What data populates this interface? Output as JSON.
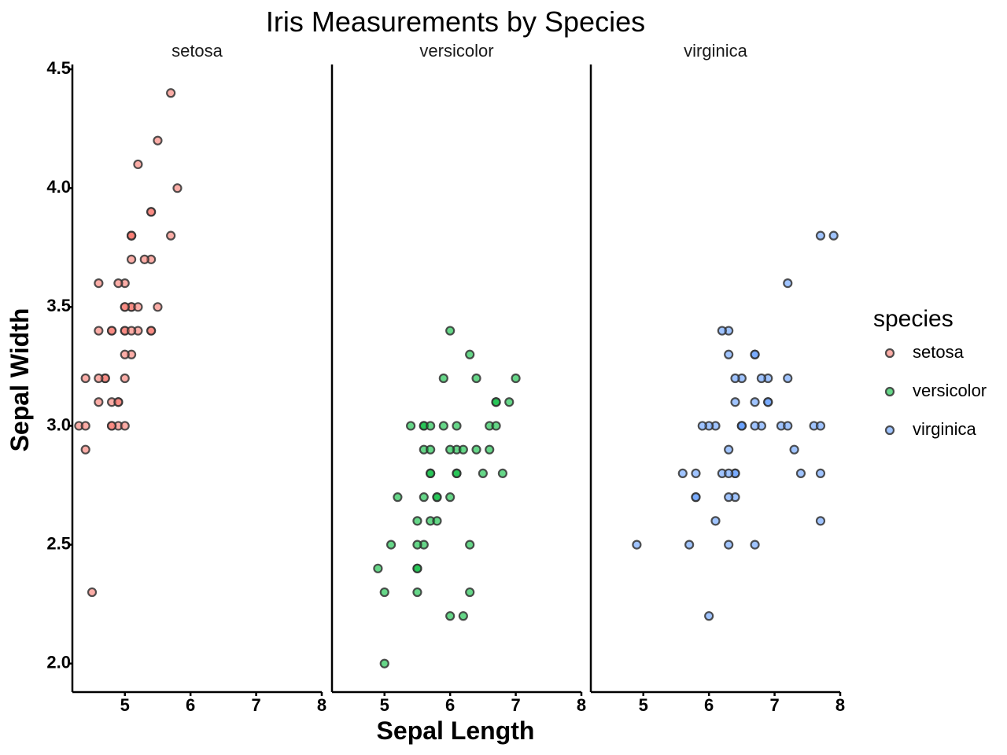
{
  "chart_data": {
    "type": "scatter",
    "title": "Iris Measurements by Species",
    "xlabel": "Sepal Length",
    "ylabel": "Sepal Width",
    "xlim": [
      4.2,
      8.0
    ],
    "ylim": [
      1.88,
      4.52
    ],
    "xticks": [
      "5",
      "6",
      "7",
      "8"
    ],
    "yticks": [
      "2.0",
      "2.5",
      "3.0",
      "3.5",
      "4.0",
      "4.5"
    ],
    "grid": false,
    "legend": {
      "title": "species",
      "placement": "right",
      "entries": [
        "setosa",
        "versicolor",
        "virginica"
      ]
    },
    "facets": [
      {
        "name": "setosa",
        "color": "#F8766D",
        "points": [
          [
            5.1,
            3.5
          ],
          [
            4.9,
            3.0
          ],
          [
            4.7,
            3.2
          ],
          [
            4.6,
            3.1
          ],
          [
            5.0,
            3.6
          ],
          [
            5.4,
            3.9
          ],
          [
            4.6,
            3.4
          ],
          [
            5.0,
            3.4
          ],
          [
            4.4,
            2.9
          ],
          [
            4.9,
            3.1
          ],
          [
            5.4,
            3.7
          ],
          [
            4.8,
            3.4
          ],
          [
            4.8,
            3.0
          ],
          [
            4.3,
            3.0
          ],
          [
            5.8,
            4.0
          ],
          [
            5.7,
            4.4
          ],
          [
            5.4,
            3.9
          ],
          [
            5.1,
            3.5
          ],
          [
            5.7,
            3.8
          ],
          [
            5.1,
            3.8
          ],
          [
            5.4,
            3.4
          ],
          [
            5.1,
            3.7
          ],
          [
            4.6,
            3.6
          ],
          [
            5.1,
            3.3
          ],
          [
            4.8,
            3.4
          ],
          [
            5.0,
            3.0
          ],
          [
            5.0,
            3.4
          ],
          [
            5.2,
            3.5
          ],
          [
            5.2,
            3.4
          ],
          [
            4.7,
            3.2
          ],
          [
            4.8,
            3.1
          ],
          [
            5.4,
            3.4
          ],
          [
            5.2,
            4.1
          ],
          [
            5.5,
            4.2
          ],
          [
            4.9,
            3.1
          ],
          [
            5.0,
            3.2
          ],
          [
            5.5,
            3.5
          ],
          [
            4.9,
            3.6
          ],
          [
            4.4,
            3.0
          ],
          [
            5.1,
            3.4
          ],
          [
            5.0,
            3.5
          ],
          [
            4.5,
            2.3
          ],
          [
            4.4,
            3.2
          ],
          [
            5.0,
            3.5
          ],
          [
            5.1,
            3.8
          ],
          [
            4.8,
            3.0
          ],
          [
            5.1,
            3.8
          ],
          [
            4.6,
            3.2
          ],
          [
            5.3,
            3.7
          ],
          [
            5.0,
            3.3
          ]
        ]
      },
      {
        "name": "versicolor",
        "color": "#00BA38",
        "points": [
          [
            7.0,
            3.2
          ],
          [
            6.4,
            3.2
          ],
          [
            6.9,
            3.1
          ],
          [
            5.5,
            2.3
          ],
          [
            6.5,
            2.8
          ],
          [
            5.7,
            2.8
          ],
          [
            6.3,
            3.3
          ],
          [
            4.9,
            2.4
          ],
          [
            6.6,
            2.9
          ],
          [
            5.2,
            2.7
          ],
          [
            5.0,
            2.0
          ],
          [
            5.9,
            3.0
          ],
          [
            6.0,
            2.2
          ],
          [
            6.1,
            2.9
          ],
          [
            5.6,
            2.9
          ],
          [
            6.7,
            3.1
          ],
          [
            5.6,
            3.0
          ],
          [
            5.8,
            2.7
          ],
          [
            6.2,
            2.2
          ],
          [
            5.6,
            2.5
          ],
          [
            5.9,
            3.2
          ],
          [
            6.1,
            2.8
          ],
          [
            6.3,
            2.5
          ],
          [
            6.1,
            2.8
          ],
          [
            6.4,
            2.9
          ],
          [
            6.6,
            3.0
          ],
          [
            6.8,
            2.8
          ],
          [
            6.7,
            3.0
          ],
          [
            6.0,
            2.9
          ],
          [
            5.7,
            2.6
          ],
          [
            5.5,
            2.4
          ],
          [
            5.5,
            2.4
          ],
          [
            5.8,
            2.7
          ],
          [
            6.0,
            2.7
          ],
          [
            5.4,
            3.0
          ],
          [
            6.0,
            3.4
          ],
          [
            6.7,
            3.1
          ],
          [
            6.3,
            2.3
          ],
          [
            5.6,
            3.0
          ],
          [
            5.5,
            2.5
          ],
          [
            5.5,
            2.6
          ],
          [
            6.1,
            3.0
          ],
          [
            5.8,
            2.6
          ],
          [
            5.0,
            2.3
          ],
          [
            5.6,
            2.7
          ],
          [
            5.7,
            3.0
          ],
          [
            5.7,
            2.9
          ],
          [
            6.2,
            2.9
          ],
          [
            5.1,
            2.5
          ],
          [
            5.7,
            2.8
          ]
        ]
      },
      {
        "name": "virginica",
        "color": "#619CFF",
        "points": [
          [
            6.3,
            3.3
          ],
          [
            5.8,
            2.7
          ],
          [
            7.1,
            3.0
          ],
          [
            6.3,
            2.9
          ],
          [
            6.5,
            3.0
          ],
          [
            7.6,
            3.0
          ],
          [
            4.9,
            2.5
          ],
          [
            7.3,
            2.9
          ],
          [
            6.7,
            2.5
          ],
          [
            7.2,
            3.6
          ],
          [
            6.5,
            3.2
          ],
          [
            6.4,
            2.7
          ],
          [
            6.8,
            3.0
          ],
          [
            5.7,
            2.5
          ],
          [
            5.8,
            2.8
          ],
          [
            6.4,
            3.2
          ],
          [
            6.5,
            3.0
          ],
          [
            7.7,
            3.8
          ],
          [
            7.7,
            2.6
          ],
          [
            6.0,
            2.2
          ],
          [
            6.9,
            3.2
          ],
          [
            5.6,
            2.8
          ],
          [
            7.7,
            2.8
          ],
          [
            6.3,
            2.7
          ],
          [
            6.7,
            3.3
          ],
          [
            7.2,
            3.2
          ],
          [
            6.2,
            2.8
          ],
          [
            6.1,
            3.0
          ],
          [
            6.4,
            2.8
          ],
          [
            7.2,
            3.0
          ],
          [
            7.4,
            2.8
          ],
          [
            7.9,
            3.8
          ],
          [
            6.4,
            2.8
          ],
          [
            6.3,
            2.8
          ],
          [
            6.1,
            2.6
          ],
          [
            7.7,
            3.0
          ],
          [
            6.3,
            3.4
          ],
          [
            6.4,
            3.1
          ],
          [
            6.0,
            3.0
          ],
          [
            6.9,
            3.1
          ],
          [
            6.7,
            3.1
          ],
          [
            6.9,
            3.1
          ],
          [
            5.8,
            2.7
          ],
          [
            6.8,
            3.2
          ],
          [
            6.7,
            3.3
          ],
          [
            6.7,
            3.0
          ],
          [
            6.3,
            2.5
          ],
          [
            6.5,
            3.0
          ],
          [
            6.2,
            3.4
          ],
          [
            5.9,
            3.0
          ]
        ]
      }
    ]
  }
}
